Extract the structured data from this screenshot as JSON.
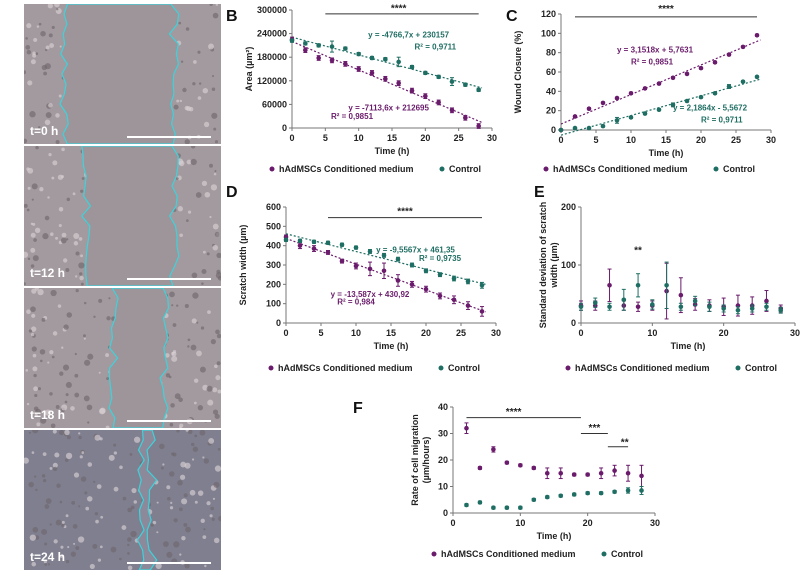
{
  "panels": {
    "A": "A",
    "B": "B",
    "C": "C",
    "D": "D",
    "E": "E",
    "F": "F"
  },
  "micrographs": [
    {
      "label": "t=0 h"
    },
    {
      "label": "t=12 h"
    },
    {
      "label": "t=18 h"
    },
    {
      "label": "t=24 h"
    }
  ],
  "colors": {
    "treated": "#6a1b6b",
    "control": "#1f6e63",
    "outline": "#3cd3dc"
  },
  "chart_data": [
    {
      "id": "B",
      "type": "scatter",
      "xlabel": "Time (h)",
      "ylabel": "Area (µm²)",
      "xlim": [
        0,
        30
      ],
      "ylim": [
        0,
        300000
      ],
      "xticks": [
        "0",
        "5",
        "10",
        "15",
        "20",
        "25",
        "30"
      ],
      "yticks": [
        "0",
        "60000",
        "120000",
        "180000",
        "240000",
        "300000"
      ],
      "x": [
        0,
        2,
        4,
        6,
        8,
        10,
        12,
        14,
        16,
        18,
        20,
        22,
        24,
        26,
        28
      ],
      "series": [
        {
          "name": "hAdMSCs Conditioned medium",
          "values": [
            225000,
            198000,
            178000,
            172000,
            163000,
            150000,
            140000,
            125000,
            114000,
            95000,
            81000,
            65000,
            45000,
            26000,
            5000
          ],
          "errors": [
            6000,
            6000,
            6000,
            6000,
            6000,
            6000,
            6000,
            6000,
            6000,
            6000,
            6000,
            6000,
            6000,
            6000,
            6000
          ]
        },
        {
          "name": "Control",
          "values": [
            222000,
            215000,
            210000,
            207000,
            202000,
            188000,
            178000,
            175000,
            168000,
            155000,
            140000,
            130000,
            118000,
            110000,
            97000
          ],
          "errors": [
            4000,
            4000,
            4000,
            14000,
            4000,
            4000,
            4000,
            4000,
            12000,
            4000,
            4000,
            4000,
            10000,
            4000,
            4000
          ]
        }
      ],
      "annotations": [
        {
          "text": "y = -4766,7x + 230157",
          "series": "Control"
        },
        {
          "text": "R² = 0,9711",
          "series": "Control"
        },
        {
          "text": "y = -7113,6x + 212695",
          "series": "hAdMSCs Conditioned medium"
        },
        {
          "text": "R² = 0,9851",
          "series": "hAdMSCs Conditioned medium"
        },
        {
          "text": "****"
        }
      ],
      "legend": [
        "hAdMSCs Conditioned medium",
        "Control"
      ],
      "legend_position": "bottom"
    },
    {
      "id": "C",
      "type": "scatter",
      "xlabel": "Time (h)",
      "ylabel": "Wound Closure (%)",
      "xlim": [
        0,
        30
      ],
      "ylim": [
        0,
        120
      ],
      "xticks": [
        "0",
        "5",
        "10",
        "15",
        "20",
        "25",
        "30"
      ],
      "yticks": [
        "0",
        "20",
        "40",
        "60",
        "80",
        "100",
        "120"
      ],
      "x": [
        0,
        2,
        4,
        6,
        8,
        10,
        12,
        14,
        16,
        18,
        20,
        22,
        24,
        26,
        28
      ],
      "series": [
        {
          "name": "hAdMSCs Conditioned medium",
          "values": [
            0,
            14,
            22,
            28,
            33,
            38,
            43,
            48,
            54,
            58,
            64,
            70,
            78,
            86,
            98
          ],
          "errors": [
            1,
            1,
            1,
            1,
            1,
            1,
            1,
            1,
            1,
            1,
            1,
            1,
            1,
            1,
            1
          ]
        },
        {
          "name": "Control",
          "values": [
            0,
            2,
            2,
            4,
            10,
            13,
            17,
            21,
            26,
            30,
            34,
            38,
            45,
            50,
            55
          ],
          "errors": [
            1,
            1,
            1,
            1,
            3,
            1,
            1,
            1,
            2,
            1,
            1,
            1,
            2,
            1,
            1
          ]
        }
      ],
      "annotations": [
        {
          "text": "y = 3,1518x + 5,7631",
          "series": "hAdMSCs Conditioned medium"
        },
        {
          "text": "R² = 0,9851",
          "series": "hAdMSCs Conditioned medium"
        },
        {
          "text": "y = 2,1864x - 5,5672",
          "series": "Control"
        },
        {
          "text": "R² = 0,9711",
          "series": "Control"
        },
        {
          "text": "****"
        }
      ],
      "legend": [
        "hAdMSCs Conditioned medium",
        "Control"
      ],
      "legend_position": "bottom"
    },
    {
      "id": "D",
      "type": "scatter",
      "xlabel": "Time (h)",
      "ylabel": "Scratch width (µm)",
      "xlim": [
        0,
        30
      ],
      "ylim": [
        0,
        600
      ],
      "xticks": [
        "0",
        "5",
        "10",
        "15",
        "20",
        "25",
        "30"
      ],
      "yticks": [
        "0",
        "100",
        "200",
        "300",
        "400",
        "500",
        "600"
      ],
      "x": [
        0,
        2,
        4,
        6,
        8,
        10,
        12,
        14,
        16,
        18,
        20,
        22,
        24,
        26,
        28
      ],
      "series": [
        {
          "name": "hAdMSCs Conditioned medium",
          "values": [
            445,
            400,
            385,
            365,
            320,
            295,
            280,
            270,
            220,
            200,
            175,
            140,
            120,
            90,
            60
          ],
          "errors": [
            10,
            15,
            15,
            10,
            10,
            15,
            35,
            40,
            30,
            15,
            15,
            15,
            20,
            20,
            25
          ]
        },
        {
          "name": "Control",
          "values": [
            430,
            425,
            420,
            415,
            405,
            390,
            370,
            350,
            330,
            300,
            270,
            250,
            230,
            215,
            195
          ],
          "errors": [
            8,
            8,
            8,
            8,
            8,
            8,
            10,
            10,
            10,
            10,
            10,
            10,
            12,
            12,
            15
          ]
        }
      ],
      "annotations": [
        {
          "text": "y = -9,5567x + 461,35",
          "series": "Control"
        },
        {
          "text": "R² = 0,9735",
          "series": "Control"
        },
        {
          "text": "y = -13,587x + 430,92",
          "series": "hAdMSCs Conditioned medium"
        },
        {
          "text": "R² = 0,984",
          "series": "hAdMSCs Conditioned medium"
        },
        {
          "text": "****"
        }
      ],
      "legend": [
        "hAdMSCs Conditioned medium",
        "Control"
      ],
      "legend_position": "bottom"
    },
    {
      "id": "E",
      "type": "scatter",
      "xlabel": "Time (h)",
      "ylabel": "Standard deviation of  scratch width (µm)",
      "xlim": [
        0,
        30
      ],
      "ylim": [
        0,
        200
      ],
      "xticks": [
        "0",
        "10",
        "20",
        "30"
      ],
      "yticks": [
        "0",
        "100",
        "200"
      ],
      "x": [
        0,
        2,
        4,
        6,
        8,
        10,
        12,
        14,
        16,
        18,
        20,
        22,
        24,
        26,
        28
      ],
      "series": [
        {
          "name": "hAdMSCs Conditioned medium",
          "values": [
            30,
            30,
            65,
            30,
            28,
            30,
            55,
            48,
            32,
            30,
            28,
            30,
            30,
            38,
            25
          ],
          "errors": [
            8,
            8,
            28,
            8,
            8,
            8,
            48,
            30,
            10,
            10,
            15,
            18,
            15,
            18,
            6
          ]
        },
        {
          "name": "Control",
          "values": [
            28,
            35,
            28,
            40,
            65,
            32,
            65,
            28,
            38,
            28,
            25,
            22,
            25,
            28,
            22
          ],
          "errors": [
            6,
            8,
            6,
            18,
            20,
            8,
            40,
            6,
            8,
            8,
            6,
            6,
            6,
            6,
            5
          ]
        }
      ],
      "annotations": [
        {
          "text": "**"
        }
      ],
      "legend": [
        "hAdMSCs Conditioned medium",
        "Control"
      ],
      "legend_position": "bottom"
    },
    {
      "id": "F",
      "type": "scatter",
      "xlabel": "Time (h)",
      "ylabel": "Rate of cell migration (µm/hours)",
      "xlim": [
        0,
        30
      ],
      "ylim": [
        0,
        40
      ],
      "xticks": [
        "0",
        "10",
        "20",
        "30"
      ],
      "yticks": [
        "0",
        "10",
        "20",
        "30",
        "40"
      ],
      "x": [
        2,
        4,
        6,
        8,
        10,
        12,
        14,
        16,
        18,
        20,
        22,
        24,
        26,
        28
      ],
      "series": [
        {
          "name": "hAdMSCs Conditioned medium",
          "values": [
            32,
            17,
            24,
            19,
            18,
            17,
            15,
            15,
            14.5,
            14.5,
            15,
            16,
            15,
            14
          ],
          "errors": [
            2,
            0.5,
            1,
            0.5,
            0.5,
            0.5,
            2,
            2,
            0.5,
            0.5,
            2,
            2,
            3,
            4
          ]
        },
        {
          "name": "Control",
          "values": [
            3,
            4,
            2,
            2,
            2,
            5,
            6,
            6.5,
            7,
            7.5,
            7.5,
            8,
            8.5,
            8.5
          ],
          "errors": [
            0.5,
            0.5,
            0.5,
            0.5,
            0.5,
            0.5,
            0.5,
            0.5,
            0.5,
            0.5,
            0.5,
            0.5,
            1,
            1.5
          ]
        }
      ],
      "annotations": [
        {
          "text": "****"
        },
        {
          "text": "***"
        },
        {
          "text": "**"
        }
      ],
      "legend": [
        "hAdMSCs Conditioned medium",
        "Control"
      ],
      "legend_position": "bottom"
    }
  ]
}
